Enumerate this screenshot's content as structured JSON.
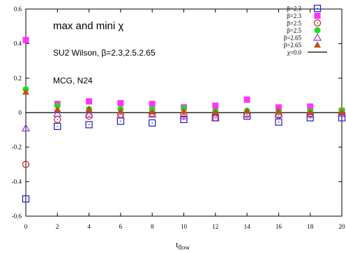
{
  "chart_data": {
    "type": "scatter",
    "title": "",
    "xlabel": "t",
    "xlabel_sub": "flow",
    "ylabel": "",
    "xlim": [
      0,
      20
    ],
    "ylim": [
      -0.6,
      0.6
    ],
    "xticks": [
      0,
      2,
      4,
      6,
      8,
      10,
      12,
      14,
      16,
      18,
      20
    ],
    "xtick_labels": [
      "0",
      "2",
      "4",
      "6",
      "8",
      "10",
      "12",
      "14",
      "16",
      "18",
      "20"
    ],
    "yticks": [
      -0.6,
      -0.4,
      -0.2,
      0,
      0.2,
      0.4,
      0.6
    ],
    "ytick_labels": [
      "-0.6",
      "-0.4",
      "-0.2",
      "0",
      "0.2",
      "0.4",
      "0.6"
    ],
    "grid": false,
    "legend_position": "top-right",
    "annotations": [
      {
        "text": "max and mini χ",
        "size": "large"
      },
      {
        "text": "SU2 Wilson, β=2.3,2.5.2.65",
        "size": "medium"
      },
      {
        "text": "MCG, N24",
        "size": "medium"
      }
    ],
    "series": [
      {
        "name": "β=2.3",
        "marker": "square-dot",
        "color": "#1a1acc",
        "x": [
          0,
          2,
          4,
          6,
          8,
          10,
          12,
          14,
          16,
          18,
          20
        ],
        "y": [
          -0.5,
          -0.08,
          -0.07,
          -0.05,
          -0.06,
          -0.04,
          -0.03,
          -0.02,
          -0.055,
          -0.03,
          -0.03
        ]
      },
      {
        "name": "β=2.3",
        "marker": "filled-square",
        "color": "#ff33ff",
        "x": [
          0,
          2,
          4,
          6,
          8,
          10,
          12,
          14,
          16,
          18,
          20
        ],
        "y": [
          0.42,
          0.05,
          0.065,
          0.055,
          0.05,
          0.03,
          0.04,
          0.075,
          0.03,
          0.035,
          0.01
        ]
      },
      {
        "name": "β=2.5",
        "marker": "circle-dot",
        "color": "#cc1a1a",
        "x": [
          0,
          2,
          4,
          6,
          8,
          10,
          12,
          14,
          16,
          18,
          20
        ],
        "y": [
          -0.3,
          -0.04,
          -0.02,
          -0.01,
          -0.005,
          -0.01,
          -0.03,
          -0.01,
          -0.015,
          -0.005,
          -0.005
        ]
      },
      {
        "name": "β=2.5",
        "marker": "filled-circle",
        "color": "#22dd22",
        "x": [
          0,
          2,
          4,
          6,
          8,
          10,
          12,
          14,
          16,
          18,
          20
        ],
        "y": [
          0.135,
          0.04,
          0.02,
          0.02,
          0.02,
          0.025,
          0.01,
          0.01,
          0.005,
          0.01,
          0.015
        ]
      },
      {
        "name": "β=2.65",
        "marker": "triangle",
        "color": "#9933cc",
        "x": [
          0,
          2,
          4,
          6,
          8,
          10,
          12,
          14,
          16,
          18,
          20
        ],
        "y": [
          -0.09,
          -0.005,
          -0.01,
          -0.015,
          -0.01,
          -0.02,
          -0.03,
          -0.005,
          -0.01,
          -0.01,
          -0.005
        ]
      },
      {
        "name": "β=2.65",
        "marker": "filled-triangle",
        "color": "#c0501a",
        "x": [
          0,
          2,
          4,
          6,
          8,
          10,
          12,
          14,
          16,
          18,
          20
        ],
        "y": [
          0.12,
          0.02,
          0.02,
          0.01,
          0.005,
          0.01,
          0.005,
          0.01,
          0.01,
          0.005,
          0.005
        ]
      },
      {
        "name": "χ=0.0",
        "marker": "line",
        "color": "#000000",
        "x": [
          0,
          20
        ],
        "y": [
          0,
          0
        ]
      }
    ]
  }
}
